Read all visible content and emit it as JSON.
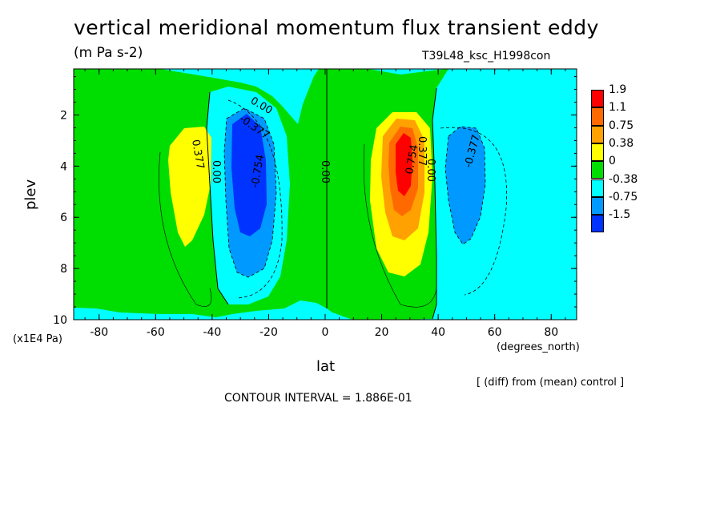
{
  "chart_data": {
    "type": "heatmap",
    "title": "vertical meridional momentum flux transient eddy",
    "units": "(m Pa s-2)",
    "run_id": "T39L48_ksc_H1998con",
    "xlabel": "lat",
    "xunit": "(degrees_north)",
    "ylabel": "plev",
    "yunit": "(x1E4 Pa)",
    "x_ticks": [
      "-80",
      "-60",
      "-40",
      "-20",
      "0",
      "20",
      "40",
      "60",
      "80"
    ],
    "y_ticks": [
      "2",
      "4",
      "6",
      "8",
      "10"
    ],
    "xlim": [
      -89,
      89
    ],
    "ylim": [
      0.2,
      10
    ],
    "y_inverted": true,
    "note": "[ (diff) from (mean) control ]",
    "contour_interval": "CONTOUR INTERVAL = 1.886E-01",
    "legend": {
      "levels": [
        "1.9",
        "1.1",
        "0.75",
        "0.38",
        "0",
        "-0.38",
        "-0.75",
        "-1.5"
      ],
      "colors": [
        "#ff0000",
        "#ff6a00",
        "#ffa100",
        "#ffff00",
        "#00dd00",
        "#00ffff",
        "#0099ff",
        "#0033ff"
      ]
    },
    "colors": {
      "negative_weak": "#00ffff",
      "positive_weak": "#00dd00",
      "positive_mid": "#ffff00",
      "positive_strong": "#ffa100",
      "positive_stronger": "#ff6a00",
      "positive_max": "#ff0000",
      "negative_mid": "#0099ff",
      "negative_strong": "#0033ff"
    },
    "contour_labels": [
      "0.00",
      "-0.377",
      "0.377",
      "0.00",
      "-0.754",
      "0.00",
      "0.754",
      "0.377",
      "0.00",
      "-0.377"
    ],
    "extrema": [
      {
        "lat": -50,
        "plev": 4.0,
        "value": 0.5
      },
      {
        "lat": -27,
        "plev": 4.3,
        "value": -0.9
      },
      {
        "lat": 28,
        "plev": 3.8,
        "value": 1.9
      },
      {
        "lat": 50,
        "plev": 4.0,
        "value": -0.6
      }
    ]
  }
}
